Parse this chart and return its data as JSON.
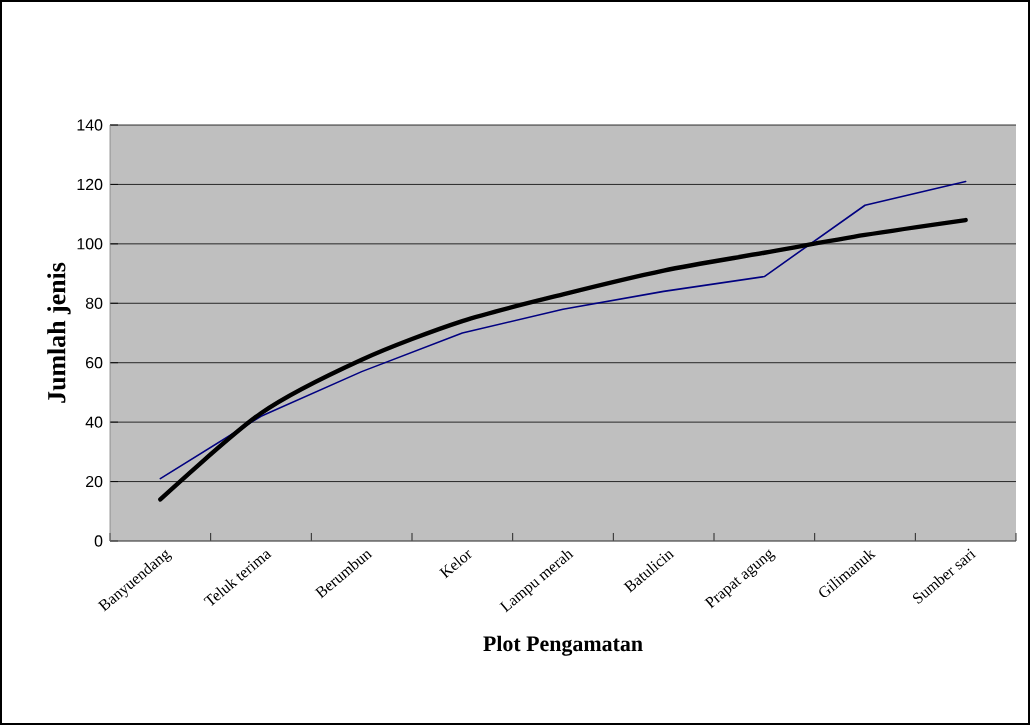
{
  "chart_data": {
    "type": "line",
    "xlabel": "Plot Pengamatan",
    "ylabel": "Jumlah jenis",
    "categories": [
      "Banyuendang",
      "Teluk terima",
      "Berumbun",
      "Kelor",
      "Lampu merah",
      "Batulicin",
      "Prapat agung",
      "Gilimanuk",
      "Sumber sari"
    ],
    "series": [
      {
        "color": "#000080",
        "values": [
          21,
          42,
          57,
          70,
          78,
          84,
          89,
          113,
          121
        ]
      },
      {
        "color": "#000000",
        "values": [
          14,
          43,
          61,
          74,
          83,
          91,
          97,
          103,
          108
        ]
      }
    ],
    "ylim": [
      0,
      140
    ],
    "yticks": [
      0,
      20,
      40,
      60,
      80,
      100,
      120,
      140
    ],
    "grid": "y",
    "marker": "none",
    "legend": false
  }
}
